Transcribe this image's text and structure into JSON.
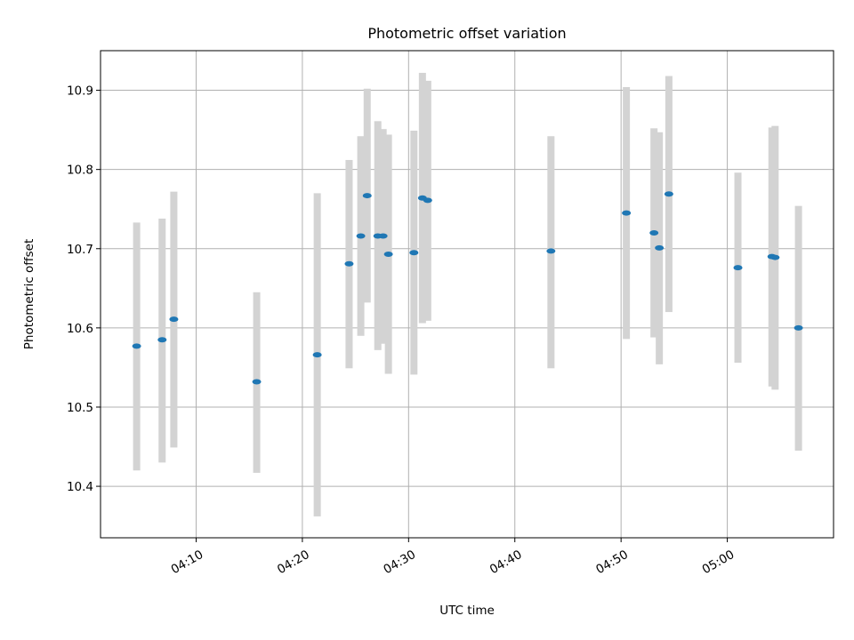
{
  "chart_data": {
    "type": "scatter",
    "title": "Photometric offset variation",
    "xlabel": "UTC time",
    "ylabel": "Photometric offset",
    "x_ticks": [
      "04:10",
      "04:20",
      "04:30",
      "04:40",
      "04:50",
      "05:00"
    ],
    "y_ticks": [
      "10.4",
      "10.5",
      "10.6",
      "10.7",
      "10.8",
      "10.9"
    ],
    "xlim": [
      "04:01",
      "05:10"
    ],
    "ylim": [
      10.335,
      10.95
    ],
    "grid": true,
    "colors": {
      "point": "#1f77b4",
      "errorbar": "#d3d3d3",
      "grid": "#b0b0b0"
    },
    "points": [
      {
        "x": "04:04:24",
        "y": 10.577,
        "low": 10.42,
        "high": 10.733
      },
      {
        "x": "04:06:48",
        "y": 10.585,
        "low": 10.43,
        "high": 10.738
      },
      {
        "x": "04:07:54",
        "y": 10.611,
        "low": 10.449,
        "high": 10.772
      },
      {
        "x": "04:15:42",
        "y": 10.532,
        "low": 10.417,
        "high": 10.645
      },
      {
        "x": "04:21:24",
        "y": 10.566,
        "low": 10.362,
        "high": 10.77
      },
      {
        "x": "04:24:24",
        "y": 10.681,
        "low": 10.549,
        "high": 10.812
      },
      {
        "x": "04:25:30",
        "y": 10.716,
        "low": 10.59,
        "high": 10.842
      },
      {
        "x": "04:26:06",
        "y": 10.767,
        "low": 10.632,
        "high": 10.902
      },
      {
        "x": "04:27:06",
        "y": 10.716,
        "low": 10.572,
        "high": 10.861
      },
      {
        "x": "04:27:36",
        "y": 10.716,
        "low": 10.58,
        "high": 10.851
      },
      {
        "x": "04:28:06",
        "y": 10.693,
        "low": 10.542,
        "high": 10.844
      },
      {
        "x": "04:30:30",
        "y": 10.695,
        "low": 10.541,
        "high": 10.849
      },
      {
        "x": "04:31:18",
        "y": 10.764,
        "low": 10.606,
        "high": 10.922
      },
      {
        "x": "04:31:48",
        "y": 10.761,
        "low": 10.609,
        "high": 10.912
      },
      {
        "x": "04:43:24",
        "y": 10.697,
        "low": 10.549,
        "high": 10.842
      },
      {
        "x": "04:50:30",
        "y": 10.745,
        "low": 10.586,
        "high": 10.904
      },
      {
        "x": "04:53:06",
        "y": 10.72,
        "low": 10.588,
        "high": 10.852
      },
      {
        "x": "04:53:36",
        "y": 10.701,
        "low": 10.554,
        "high": 10.847
      },
      {
        "x": "04:54:30",
        "y": 10.769,
        "low": 10.62,
        "high": 10.918
      },
      {
        "x": "05:01:00",
        "y": 10.676,
        "low": 10.556,
        "high": 10.796
      },
      {
        "x": "05:04:12",
        "y": 10.69,
        "low": 10.526,
        "high": 10.853
      },
      {
        "x": "05:04:30",
        "y": 10.689,
        "low": 10.522,
        "high": 10.855
      },
      {
        "x": "05:06:42",
        "y": 10.6,
        "low": 10.445,
        "high": 10.754
      }
    ]
  }
}
